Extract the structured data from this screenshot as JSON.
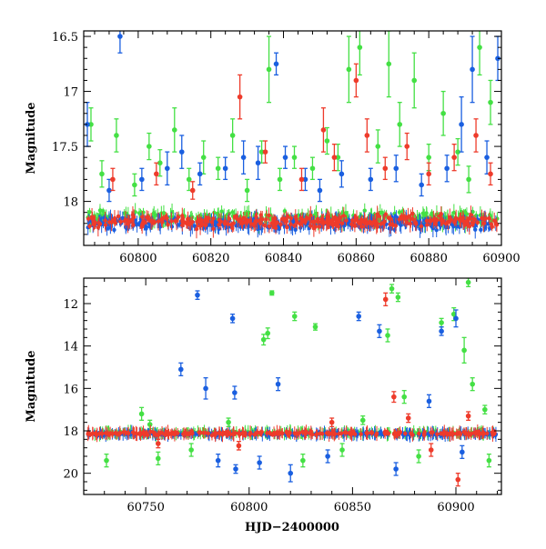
{
  "chart_data": [
    {
      "type": "scatter",
      "title": "",
      "xlabel": "",
      "ylabel": "Magnitude",
      "xlim": [
        60785,
        60900
      ],
      "ylim": [
        18.4,
        16.45
      ],
      "y_inverted": true,
      "xticks": [
        60800,
        60820,
        60840,
        60860,
        60880,
        60900
      ],
      "yticks": [
        16.5,
        17,
        17.5,
        18
      ],
      "grid": false,
      "legend": "none",
      "series": [
        {
          "color": "#44e044",
          "style": "points-with-errorbars",
          "baseline": 18.15,
          "points": [
            {
              "x": 60787,
              "y": 17.3,
              "err": 0.15
            },
            {
              "x": 60790,
              "y": 17.75,
              "err": 0.12
            },
            {
              "x": 60794,
              "y": 17.4,
              "err": 0.15
            },
            {
              "x": 60799,
              "y": 17.85,
              "err": 0.1
            },
            {
              "x": 60803,
              "y": 17.5,
              "err": 0.12
            },
            {
              "x": 60806,
              "y": 17.65,
              "err": 0.12
            },
            {
              "x": 60810,
              "y": 17.35,
              "err": 0.2
            },
            {
              "x": 60814,
              "y": 17.8,
              "err": 0.1
            },
            {
              "x": 60818,
              "y": 17.6,
              "err": 0.15
            },
            {
              "x": 60822,
              "y": 17.7,
              "err": 0.1
            },
            {
              "x": 60826,
              "y": 17.4,
              "err": 0.15
            },
            {
              "x": 60830,
              "y": 17.9,
              "err": 0.1
            },
            {
              "x": 60834,
              "y": 17.55,
              "err": 0.1
            },
            {
              "x": 60836,
              "y": 16.8,
              "err": 0.3
            },
            {
              "x": 60839,
              "y": 17.8,
              "err": 0.1
            },
            {
              "x": 60843,
              "y": 17.6,
              "err": 0.1
            },
            {
              "x": 60848,
              "y": 17.7,
              "err": 0.1
            },
            {
              "x": 60852,
              "y": 17.45,
              "err": 0.12
            },
            {
              "x": 60855,
              "y": 17.6,
              "err": 0.12
            },
            {
              "x": 60858,
              "y": 16.8,
              "err": 0.3
            },
            {
              "x": 60861,
              "y": 16.6,
              "err": 0.25
            },
            {
              "x": 60866,
              "y": 17.5,
              "err": 0.15
            },
            {
              "x": 60869,
              "y": 16.75,
              "err": 0.3
            },
            {
              "x": 60872,
              "y": 17.3,
              "err": 0.2
            },
            {
              "x": 60876,
              "y": 16.9,
              "err": 0.25
            },
            {
              "x": 60880,
              "y": 17.6,
              "err": 0.12
            },
            {
              "x": 60884,
              "y": 17.2,
              "err": 0.2
            },
            {
              "x": 60888,
              "y": 17.55,
              "err": 0.12
            },
            {
              "x": 60891,
              "y": 17.8,
              "err": 0.12
            },
            {
              "x": 60894,
              "y": 16.6,
              "err": 0.25
            },
            {
              "x": 60897,
              "y": 17.1,
              "err": 0.2
            }
          ]
        },
        {
          "color": "#1a5fe0",
          "style": "points-with-errorbars",
          "baseline": 18.2,
          "points": [
            {
              "x": 60786,
              "y": 17.3,
              "err": 0.2
            },
            {
              "x": 60792,
              "y": 17.9,
              "err": 0.1
            },
            {
              "x": 60795,
              "y": 16.5,
              "err": 0.15
            },
            {
              "x": 60801,
              "y": 17.8,
              "err": 0.1
            },
            {
              "x": 60808,
              "y": 17.7,
              "err": 0.15
            },
            {
              "x": 60812,
              "y": 17.55,
              "err": 0.15
            },
            {
              "x": 60817,
              "y": 17.75,
              "err": 0.1
            },
            {
              "x": 60824,
              "y": 17.7,
              "err": 0.1
            },
            {
              "x": 60829,
              "y": 17.6,
              "err": 0.15
            },
            {
              "x": 60833,
              "y": 17.65,
              "err": 0.15
            },
            {
              "x": 60838,
              "y": 16.75,
              "err": 0.1
            },
            {
              "x": 60840.5,
              "y": 17.6,
              "err": 0.1
            },
            {
              "x": 60846,
              "y": 17.8,
              "err": 0.1
            },
            {
              "x": 60850,
              "y": 17.9,
              "err": 0.1
            },
            {
              "x": 60856,
              "y": 17.75,
              "err": 0.12
            },
            {
              "x": 60864,
              "y": 17.8,
              "err": 0.1
            },
            {
              "x": 60871,
              "y": 17.7,
              "err": 0.12
            },
            {
              "x": 60878,
              "y": 17.85,
              "err": 0.1
            },
            {
              "x": 60885,
              "y": 17.7,
              "err": 0.12
            },
            {
              "x": 60889,
              "y": 17.3,
              "err": 0.25
            },
            {
              "x": 60892,
              "y": 16.8,
              "err": 0.3
            },
            {
              "x": 60896,
              "y": 17.6,
              "err": 0.15
            },
            {
              "x": 60899,
              "y": 16.7,
              "err": 0.2
            }
          ]
        },
        {
          "color": "#ee3b2b",
          "style": "points-with-errorbars",
          "baseline": 18.18,
          "points": [
            {
              "x": 60793,
              "y": 17.8,
              "err": 0.1
            },
            {
              "x": 60805,
              "y": 17.75,
              "err": 0.1
            },
            {
              "x": 60815,
              "y": 17.9,
              "err": 0.08
            },
            {
              "x": 60828,
              "y": 17.05,
              "err": 0.2
            },
            {
              "x": 60835,
              "y": 17.55,
              "err": 0.1
            },
            {
              "x": 60845,
              "y": 17.8,
              "err": 0.1
            },
            {
              "x": 60851,
              "y": 17.35,
              "err": 0.2
            },
            {
              "x": 60854,
              "y": 17.6,
              "err": 0.12
            },
            {
              "x": 60860,
              "y": 16.9,
              "err": 0.15
            },
            {
              "x": 60863,
              "y": 17.4,
              "err": 0.15
            },
            {
              "x": 60868,
              "y": 17.7,
              "err": 0.1
            },
            {
              "x": 60874,
              "y": 17.5,
              "err": 0.12
            },
            {
              "x": 60880,
              "y": 17.75,
              "err": 0.1
            },
            {
              "x": 60887,
              "y": 17.6,
              "err": 0.12
            },
            {
              "x": 60893,
              "y": 17.4,
              "err": 0.15
            },
            {
              "x": 60897,
              "y": 17.75,
              "err": 0.1
            }
          ]
        }
      ]
    },
    {
      "type": "scatter",
      "title": "",
      "xlabel": "HJD−2400000",
      "ylabel": "Magnitude",
      "xlim": [
        60720,
        60922
      ],
      "ylim": [
        21,
        10.8
      ],
      "y_inverted": true,
      "xticks": [
        60750,
        60800,
        60850,
        60900
      ],
      "yticks": [
        12,
        14,
        16,
        18,
        20
      ],
      "grid": false,
      "legend": "none",
      "series": [
        {
          "color": "#44e044",
          "style": "points-with-errorbars",
          "baseline": 18.1,
          "points": [
            {
              "x": 60731,
              "y": 19.4,
              "err": 0.3
            },
            {
              "x": 60748,
              "y": 17.2,
              "err": 0.3
            },
            {
              "x": 60752,
              "y": 17.7,
              "err": 0.2
            },
            {
              "x": 60756,
              "y": 19.3,
              "err": 0.3
            },
            {
              "x": 60772,
              "y": 18.9,
              "err": 0.3
            },
            {
              "x": 60790,
              "y": 17.6,
              "err": 0.2
            },
            {
              "x": 60807,
              "y": 13.7,
              "err": 0.25
            },
            {
              "x": 60809,
              "y": 13.4,
              "err": 0.25
            },
            {
              "x": 60811,
              "y": 11.5,
              "err": 0.1
            },
            {
              "x": 60822,
              "y": 12.6,
              "err": 0.2
            },
            {
              "x": 60826,
              "y": 19.4,
              "err": 0.3
            },
            {
              "x": 60832,
              "y": 13.1,
              "err": 0.15
            },
            {
              "x": 60845,
              "y": 18.9,
              "err": 0.3
            },
            {
              "x": 60855,
              "y": 17.5,
              "err": 0.2
            },
            {
              "x": 60867,
              "y": 13.5,
              "err": 0.3
            },
            {
              "x": 60869,
              "y": 11.3,
              "err": 0.2
            },
            {
              "x": 60872,
              "y": 11.7,
              "err": 0.2
            },
            {
              "x": 60875,
              "y": 16.4,
              "err": 0.3
            },
            {
              "x": 60882,
              "y": 19.2,
              "err": 0.3
            },
            {
              "x": 60893,
              "y": 12.9,
              "err": 0.2
            },
            {
              "x": 60899,
              "y": 12.5,
              "err": 0.3
            },
            {
              "x": 60904,
              "y": 14.2,
              "err": 0.6
            },
            {
              "x": 60906,
              "y": 11.0,
              "err": 0.2
            },
            {
              "x": 60908,
              "y": 15.8,
              "err": 0.3
            },
            {
              "x": 60914,
              "y": 17.0,
              "err": 0.2
            },
            {
              "x": 60916,
              "y": 19.4,
              "err": 0.3
            }
          ]
        },
        {
          "color": "#1a5fe0",
          "style": "points-with-errorbars",
          "baseline": 18.15,
          "points": [
            {
              "x": 60767,
              "y": 15.1,
              "err": 0.3
            },
            {
              "x": 60775,
              "y": 11.6,
              "err": 0.2
            },
            {
              "x": 60779,
              "y": 16.0,
              "err": 0.5
            },
            {
              "x": 60785,
              "y": 19.4,
              "err": 0.3
            },
            {
              "x": 60792,
              "y": 12.7,
              "err": 0.2
            },
            {
              "x": 60793,
              "y": 16.2,
              "err": 0.3
            },
            {
              "x": 60793.5,
              "y": 19.8,
              "err": 0.2
            },
            {
              "x": 60805,
              "y": 19.5,
              "err": 0.3
            },
            {
              "x": 60814,
              "y": 15.8,
              "err": 0.3
            },
            {
              "x": 60820,
              "y": 20.0,
              "err": 0.4
            },
            {
              "x": 60838,
              "y": 19.2,
              "err": 0.3
            },
            {
              "x": 60853,
              "y": 12.6,
              "err": 0.2
            },
            {
              "x": 60863,
              "y": 13.3,
              "err": 0.3
            },
            {
              "x": 60871,
              "y": 19.8,
              "err": 0.3
            },
            {
              "x": 60887,
              "y": 16.6,
              "err": 0.3
            },
            {
              "x": 60893,
              "y": 13.3,
              "err": 0.2
            },
            {
              "x": 60900,
              "y": 12.7,
              "err": 0.4
            },
            {
              "x": 60903,
              "y": 19.0,
              "err": 0.3
            }
          ]
        },
        {
          "color": "#ee3b2b",
          "style": "points-with-errorbars",
          "baseline": 18.12,
          "points": [
            {
              "x": 60756,
              "y": 18.6,
              "err": 0.2
            },
            {
              "x": 60795,
              "y": 18.7,
              "err": 0.2
            },
            {
              "x": 60840,
              "y": 17.6,
              "err": 0.2
            },
            {
              "x": 60866,
              "y": 11.8,
              "err": 0.3
            },
            {
              "x": 60870,
              "y": 16.4,
              "err": 0.25
            },
            {
              "x": 60877,
              "y": 17.4,
              "err": 0.2
            },
            {
              "x": 60888,
              "y": 18.9,
              "err": 0.3
            },
            {
              "x": 60901,
              "y": 20.3,
              "err": 0.3
            },
            {
              "x": 60906,
              "y": 17.3,
              "err": 0.2
            }
          ]
        }
      ]
    }
  ]
}
